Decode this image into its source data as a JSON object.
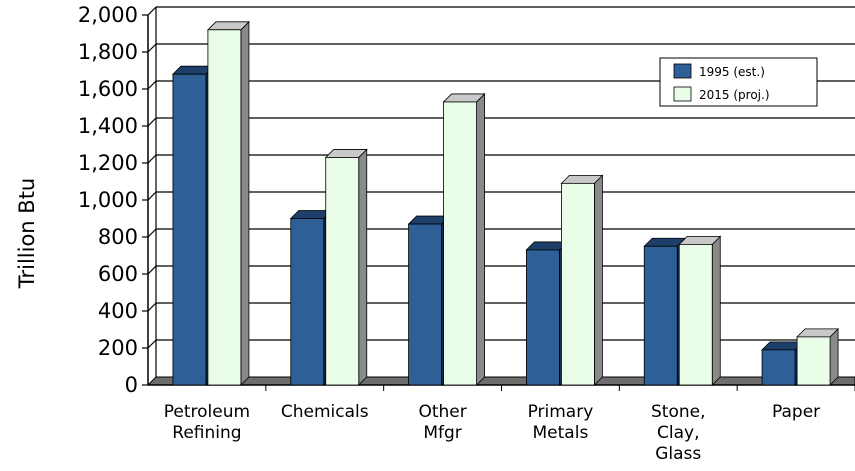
{
  "chart_data": {
    "type": "bar",
    "title": "",
    "xlabel": "",
    "ylabel": "Trillion Btu",
    "ylim": [
      0,
      2000
    ],
    "yticks": [
      "0",
      "200",
      "400",
      "600",
      "800",
      "1,000",
      "1,200",
      "1,400",
      "1,600",
      "1,800",
      "2,000"
    ],
    "ytick_values": [
      0,
      200,
      400,
      600,
      800,
      1000,
      1200,
      1400,
      1600,
      1800,
      2000
    ],
    "grid": true,
    "legend_position": "top-right",
    "categories": [
      [
        "Petroleum",
        "Refining"
      ],
      [
        "Chemicals"
      ],
      [
        "Other",
        "Mfgr"
      ],
      [
        "Primary",
        "Metals"
      ],
      [
        "Stone,",
        "Clay,",
        "Glass"
      ],
      [
        "Paper"
      ]
    ],
    "series": [
      {
        "name": "1995 (est.)",
        "color": "#2e5f96",
        "values": [
          1680,
          900,
          870,
          730,
          750,
          190
        ]
      },
      {
        "name": "2015 (proj.)",
        "color": "#eafde9",
        "values": [
          1920,
          1230,
          1530,
          1090,
          760,
          260
        ]
      }
    ]
  }
}
